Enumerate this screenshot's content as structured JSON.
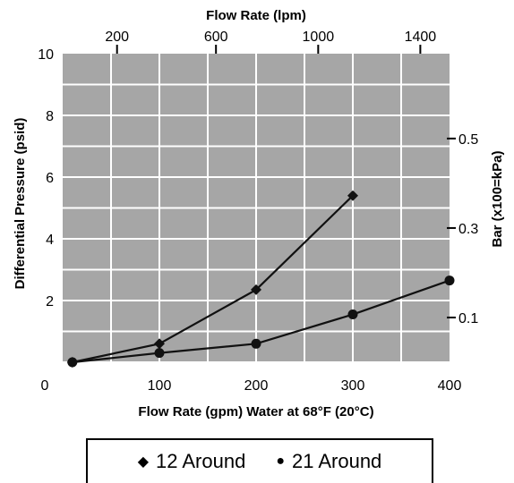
{
  "chart_data": {
    "type": "line",
    "title": "",
    "xlabel": "Flow Rate (gpm) Water at 68°F (20°C)",
    "ylabel": "Differential Pressure (psid)",
    "xlim": [
      0,
      400
    ],
    "ylim": [
      0,
      10
    ],
    "x_ticks": [
      "0",
      "100",
      "200",
      "300",
      "400"
    ],
    "y_ticks": [
      "2",
      "4",
      "6",
      "8",
      "10"
    ],
    "top_axis": {
      "label": "Flow Rate (lpm)",
      "ticks": [
        {
          "label": "200",
          "value_gpm": 56.2
        },
        {
          "label": "600",
          "value_gpm": 158.5
        },
        {
          "label": "1000",
          "value_gpm": 264.2
        },
        {
          "label": "1400",
          "value_gpm": 369.8
        }
      ]
    },
    "right_axis": {
      "label": "Bar (x100=kPa)",
      "ticks": [
        {
          "label": "0.1",
          "value_psid": 1.45
        },
        {
          "label": "0.3",
          "value_psid": 4.35
        },
        {
          "label": "0.5",
          "value_psid": 7.25
        }
      ]
    },
    "grid": true,
    "grid_color": "#a6a6a6",
    "series": [
      {
        "name": "12 Around",
        "marker": "diamond",
        "x": [
          10,
          100,
          200,
          300
        ],
        "y": [
          0,
          0.6,
          2.35,
          5.4
        ]
      },
      {
        "name": "21 Around",
        "marker": "circle",
        "x": [
          10,
          100,
          200,
          300,
          400
        ],
        "y": [
          0,
          0.3,
          0.6,
          1.55,
          2.65
        ]
      }
    ],
    "legend": {
      "position": "bottom",
      "entries": [
        {
          "glyph": "◆",
          "label": "12 Around"
        },
        {
          "glyph": "●",
          "label": "21 Around"
        }
      ]
    }
  }
}
